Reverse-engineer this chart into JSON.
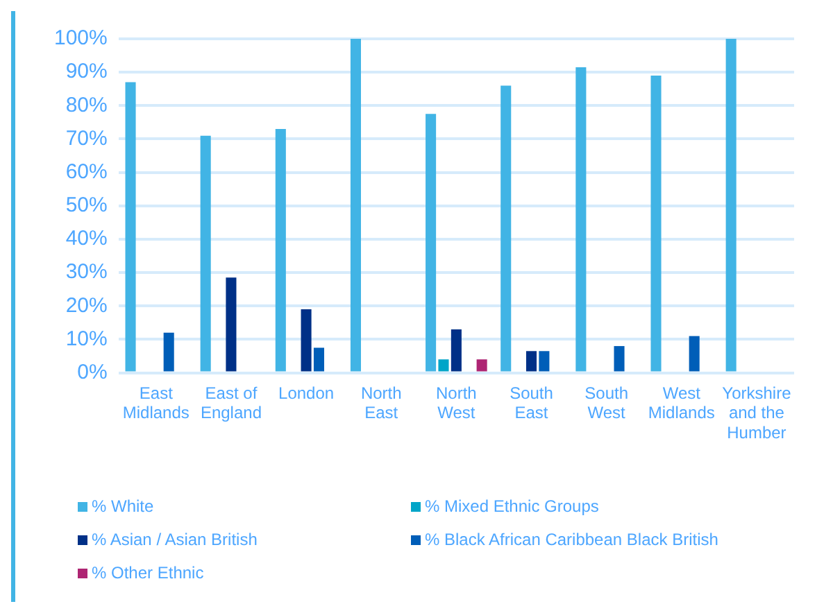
{
  "chart_data": {
    "type": "bar",
    "categories": [
      "East Midlands",
      "East of England",
      "London",
      "North East",
      "North West",
      "South East",
      "South West",
      "West Midlands",
      "Yorkshire and the Humber"
    ],
    "series": [
      {
        "name": "% White",
        "color": "#41b4e5",
        "values": [
          87,
          71,
          73,
          100,
          77.5,
          86,
          91.5,
          89,
          100
        ]
      },
      {
        "name": "% Mixed Ethnic Groups",
        "color": "#00a5c8",
        "values": [
          null,
          null,
          null,
          null,
          4,
          null,
          null,
          null,
          null
        ]
      },
      {
        "name": "% Asian / Asian British",
        "color": "#003087",
        "values": [
          null,
          28.5,
          19,
          null,
          13,
          6.5,
          null,
          null,
          null
        ]
      },
      {
        "name": "% Black African Caribbean Black British",
        "color": "#005eb8",
        "values": [
          12,
          null,
          7.5,
          null,
          null,
          6.5,
          8,
          11,
          null
        ]
      },
      {
        "name": "% Other Ethnic",
        "color": "#ae2573",
        "values": [
          null,
          null,
          null,
          null,
          4,
          null,
          null,
          null,
          null
        ]
      }
    ],
    "ylim": [
      0,
      100
    ],
    "yticks": [
      {
        "value": 0,
        "label": "0%"
      },
      {
        "value": 10,
        "label": "10%"
      },
      {
        "value": 20,
        "label": "20%"
      },
      {
        "value": 30,
        "label": "30%"
      },
      {
        "value": 40,
        "label": "40%"
      },
      {
        "value": 50,
        "label": "50%"
      },
      {
        "value": 60,
        "label": "60%"
      },
      {
        "value": 70,
        "label": "70%"
      },
      {
        "value": 80,
        "label": "80%"
      },
      {
        "value": 90,
        "label": "90%"
      },
      {
        "value": 100,
        "label": "100%"
      }
    ],
    "grid": "y",
    "legend": "bottom"
  }
}
